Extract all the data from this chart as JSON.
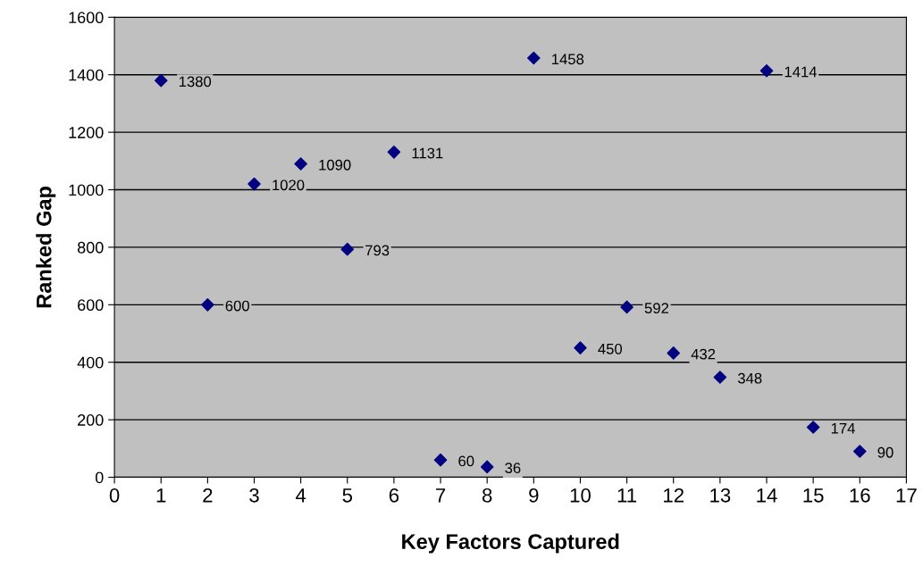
{
  "chart_data": {
    "type": "scatter",
    "xlabel": "Key Factors Captured",
    "ylabel": "Ranked Gap",
    "x": [
      1,
      2,
      3,
      4,
      5,
      6,
      7,
      8,
      9,
      10,
      11,
      12,
      13,
      14,
      15,
      16
    ],
    "series": [
      {
        "color": "#000080",
        "values": [
          1380,
          600,
          1020,
          1090,
          793,
          1131,
          60,
          36,
          1458,
          450,
          592,
          432,
          348,
          1414,
          174,
          90
        ]
      }
    ],
    "xlim": [
      0,
      17
    ],
    "xticks": [
      0,
      1,
      2,
      3,
      4,
      5,
      6,
      7,
      8,
      9,
      10,
      11,
      12,
      13,
      14,
      15,
      16,
      17
    ],
    "ylim": [
      0,
      1600
    ],
    "yticks": [
      0,
      200,
      400,
      600,
      800,
      1000,
      1200,
      1400,
      1600
    ],
    "grid": "y",
    "marker": "diamond",
    "data_labels": true
  }
}
